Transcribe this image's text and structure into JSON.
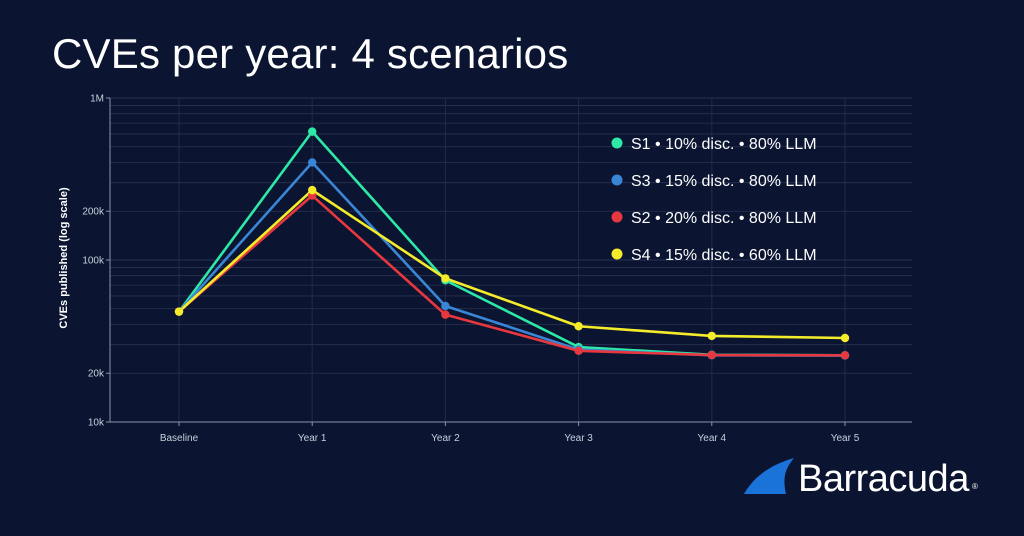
{
  "page": {
    "background": "#0b1431"
  },
  "title": "CVEs per year: 4 scenarios",
  "brand": {
    "name": "Barracuda",
    "reg_mark": "®",
    "icon": "barracuda-fin-icon",
    "color": "#1a73d8"
  },
  "chart_data": {
    "type": "line",
    "title": "CVEs per year: 4 scenarios",
    "xlabel": "",
    "ylabel": "CVEs published (log scale)",
    "yscale": "log",
    "ylim": [
      10000,
      1000000
    ],
    "categories": [
      "Baseline",
      "Year 1",
      "Year 2",
      "Year 3",
      "Year 4",
      "Year 5"
    ],
    "y_ticks": [
      10000,
      20000,
      100000,
      200000,
      1000000
    ],
    "y_tick_labels": [
      "10k",
      "20k",
      "100k",
      "200k",
      "1M"
    ],
    "grid": true,
    "legend_position": "top-right",
    "series": [
      {
        "name": "S1 • 10% disc. • 80% LLM",
        "color": "#2ee8a8",
        "values": [
          48000,
          620000,
          75000,
          29000,
          26000,
          25800
        ]
      },
      {
        "name": "S3 • 15% disc. • 80% LLM",
        "color": "#3a86d6",
        "values": [
          48000,
          400000,
          52000,
          28000,
          25800,
          25700
        ]
      },
      {
        "name": "S2 • 20% disc. • 80% LLM",
        "color": "#e8383f",
        "values": [
          48000,
          250000,
          46000,
          27500,
          25900,
          25800
        ]
      },
      {
        "name": "S4 • 15% disc. • 60% LLM",
        "color": "#f4ec2a",
        "values": [
          48000,
          270000,
          77000,
          39000,
          34000,
          33000
        ]
      }
    ]
  }
}
